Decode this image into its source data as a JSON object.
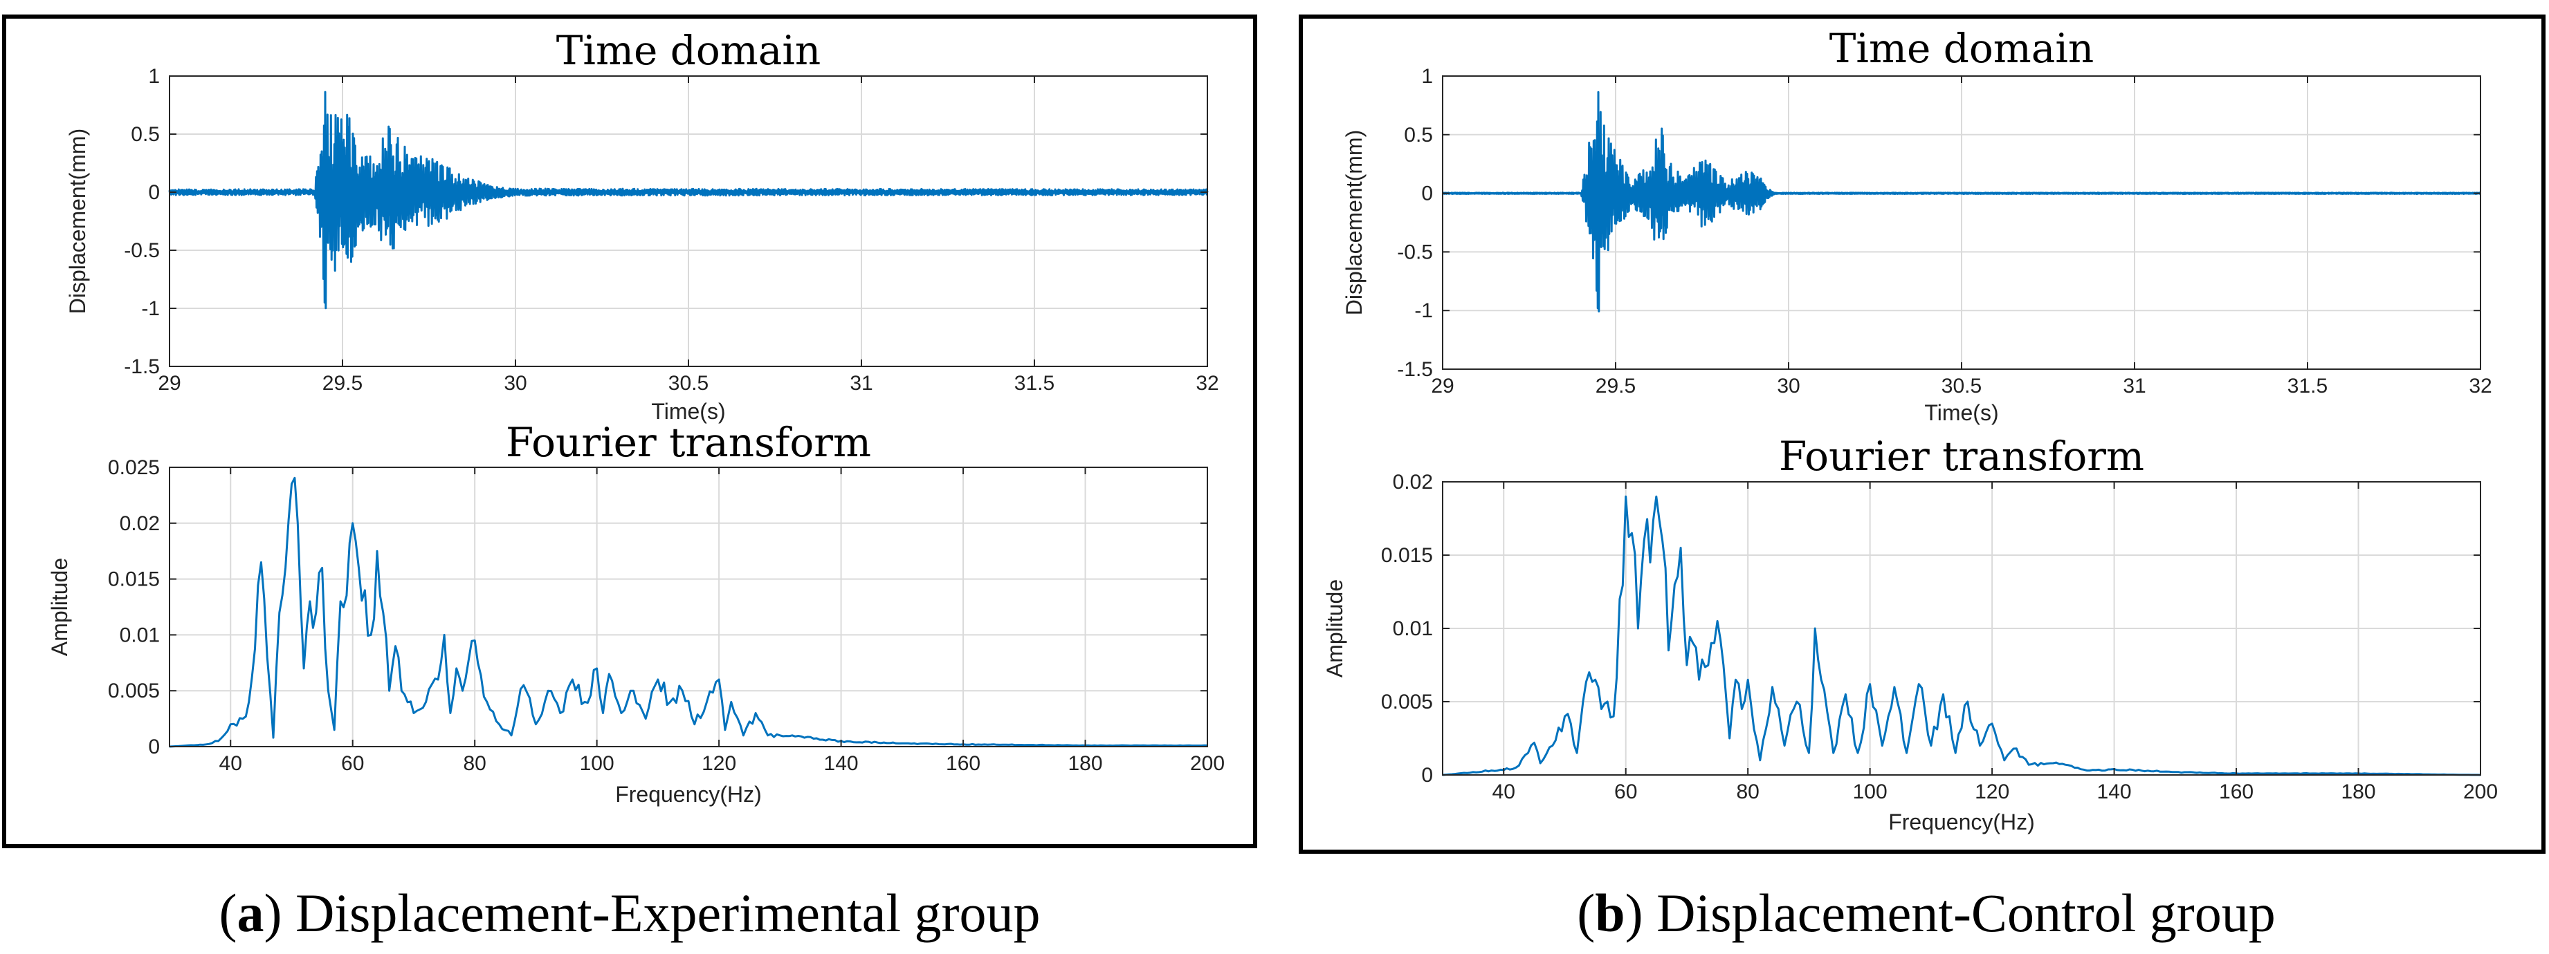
{
  "colors": {
    "line": "#0072BD",
    "grid": "#DADADA",
    "axis": "#262626",
    "frame": "#000000"
  },
  "captions": [
    {
      "paren_open": "(",
      "letter": "a",
      "paren_close": ")",
      "text": " Displacement-Experimental group"
    },
    {
      "paren_open": "(",
      "letter": "b",
      "paren_close": ")",
      "text": " Displacement-Control group"
    }
  ],
  "chart_data": [
    {
      "id": "a-time",
      "panel": "a",
      "type": "line",
      "title": "Time domain",
      "xlabel": "Time(s)",
      "ylabel": "Displacement(mm)",
      "xlim": [
        29,
        32
      ],
      "ylim": [
        -1.5,
        1
      ],
      "xticks": [
        29,
        29.5,
        30,
        30.5,
        31,
        31.5,
        32
      ],
      "xtick_labels": [
        "29",
        "29.5",
        "30",
        "30.5",
        "31",
        "31.5",
        "32"
      ],
      "yticks": [
        -1.5,
        -1,
        -0.5,
        0,
        0.5,
        1
      ],
      "ytick_labels": [
        "-1.5",
        "-1",
        "-0.5",
        "0",
        "0.5",
        "1"
      ],
      "envelope": {
        "t": [
          29,
          29.42,
          29.44,
          29.45,
          29.46,
          29.5,
          29.52,
          29.56,
          29.6,
          29.63,
          29.7,
          29.75,
          29.8,
          29.85,
          29.9,
          29.95,
          30.0,
          32
        ],
        "amp": [
          0.025,
          0.025,
          0.66,
          1.05,
          0.75,
          0.62,
          0.7,
          0.32,
          0.3,
          0.62,
          0.32,
          0.3,
          0.24,
          0.14,
          0.09,
          0.05,
          0.03,
          0.025
        ]
      }
    },
    {
      "id": "a-fft",
      "panel": "a",
      "type": "line",
      "title": "Fourier transform",
      "xlabel": "Frequency(Hz)",
      "ylabel": "Amplitude",
      "xlim": [
        30,
        200
      ],
      "ylim": [
        0,
        0.025
      ],
      "xticks": [
        40,
        60,
        80,
        100,
        120,
        140,
        160,
        180,
        200
      ],
      "xtick_labels": [
        "40",
        "60",
        "80",
        "100",
        "120",
        "140",
        "160",
        "180",
        "200"
      ],
      "yticks": [
        0,
        0.005,
        0.01,
        0.015,
        0.02,
        0.025
      ],
      "ytick_labels": [
        "0",
        "0.005",
        "0.01",
        "0.015",
        "0.02",
        "0.025"
      ],
      "x": [
        30,
        36,
        38,
        40,
        42,
        43,
        45,
        46,
        47,
        48,
        49,
        50,
        51,
        52,
        53,
        54,
        55,
        56,
        57,
        58,
        59,
        60,
        61,
        62,
        63,
        64,
        65,
        66,
        67,
        68,
        70,
        72,
        74,
        75,
        76,
        77,
        78,
        80,
        82,
        84,
        86,
        88,
        90,
        92,
        94,
        96,
        98,
        100,
        101,
        102,
        104,
        106,
        108,
        110,
        112,
        114,
        116,
        118,
        120,
        121,
        122,
        124,
        126,
        128,
        130,
        134,
        140,
        150,
        160,
        180,
        200
      ],
      "y": [
        0,
        0.0002,
        0.0005,
        0.002,
        0.0025,
        0.004,
        0.0165,
        0.008,
        0.0008,
        0.012,
        0.016,
        0.0235,
        0.02,
        0.007,
        0.013,
        0.012,
        0.016,
        0.005,
        0.0015,
        0.013,
        0.0135,
        0.02,
        0.016,
        0.014,
        0.01,
        0.0175,
        0.012,
        0.005,
        0.009,
        0.005,
        0.003,
        0.004,
        0.006,
        0.01,
        0.003,
        0.007,
        0.005,
        0.0095,
        0.004,
        0.002,
        0.001,
        0.0055,
        0.002,
        0.005,
        0.003,
        0.006,
        0.004,
        0.007,
        0.003,
        0.0065,
        0.003,
        0.005,
        0.0025,
        0.006,
        0.004,
        0.005,
        0.002,
        0.004,
        0.006,
        0.0015,
        0.004,
        0.001,
        0.003,
        0.001,
        0.001,
        0.0008,
        0.0005,
        0.0003,
        0.0002,
        0.0001,
        0.0001
      ]
    },
    {
      "id": "b-time",
      "panel": "b",
      "type": "line",
      "title": "Time domain",
      "xlabel": "Time(s)",
      "ylabel": "Displacement(mm)",
      "xlim": [
        29,
        32
      ],
      "ylim": [
        -1.5,
        1
      ],
      "xticks": [
        29,
        29.5,
        30,
        30.5,
        31,
        31.5,
        32
      ],
      "xtick_labels": [
        "29",
        "29.5",
        "30",
        "30.5",
        "31",
        "31.5",
        "32"
      ],
      "yticks": [
        -1.5,
        -1,
        -0.5,
        0,
        0.5,
        1
      ],
      "ytick_labels": [
        "-1.5",
        "-1",
        "-0.5",
        "0",
        "0.5",
        "1"
      ],
      "envelope": {
        "t": [
          29,
          29.4,
          29.42,
          29.44,
          29.45,
          29.47,
          29.5,
          29.55,
          29.6,
          29.63,
          29.65,
          29.7,
          29.75,
          29.78,
          29.82,
          29.88,
          29.92,
          29.94,
          29.96,
          32
        ],
        "amp": [
          0.005,
          0.005,
          0.35,
          0.85,
          1.05,
          0.55,
          0.35,
          0.12,
          0.25,
          0.65,
          0.3,
          0.12,
          0.3,
          0.25,
          0.1,
          0.2,
          0.15,
          0.05,
          0.005,
          0.005
        ]
      }
    },
    {
      "id": "b-fft",
      "panel": "b",
      "type": "line",
      "title": "Fourier transform",
      "xlabel": "Frequency(Hz)",
      "ylabel": "Amplitude",
      "xlim": [
        30,
        200
      ],
      "ylim": [
        0,
        0.02
      ],
      "xticks": [
        40,
        60,
        80,
        100,
        120,
        140,
        160,
        180,
        200
      ],
      "xtick_labels": [
        "40",
        "60",
        "80",
        "100",
        "120",
        "140",
        "160",
        "180",
        "200"
      ],
      "yticks": [
        0,
        0.005,
        0.01,
        0.015,
        0.02
      ],
      "ytick_labels": [
        "0",
        "0.005",
        "0.01",
        "0.015",
        "0.02"
      ],
      "x": [
        30,
        38,
        42,
        44,
        45,
        46,
        48,
        50,
        51,
        52,
        53,
        54,
        55,
        56,
        57,
        58,
        59,
        60,
        61,
        62,
        63,
        64,
        65,
        66,
        67,
        68,
        69,
        70,
        71,
        72,
        74,
        75,
        76,
        77,
        78,
        79,
        80,
        82,
        84,
        86,
        88,
        90,
        91,
        92,
        94,
        96,
        98,
        100,
        102,
        104,
        106,
        108,
        110,
        112,
        114,
        116,
        118,
        120,
        122,
        124,
        126,
        130,
        136,
        140,
        150,
        160,
        180,
        200
      ],
      "y": [
        0,
        0.0003,
        0.0005,
        0.0015,
        0.0022,
        0.0008,
        0.002,
        0.004,
        0.0035,
        0.0015,
        0.005,
        0.007,
        0.0065,
        0.0045,
        0.005,
        0.004,
        0.012,
        0.019,
        0.0165,
        0.01,
        0.016,
        0.0145,
        0.019,
        0.016,
        0.0085,
        0.013,
        0.0155,
        0.0075,
        0.009,
        0.0065,
        0.009,
        0.0105,
        0.0075,
        0.0025,
        0.0065,
        0.0045,
        0.0065,
        0.001,
        0.006,
        0.002,
        0.005,
        0.0015,
        0.01,
        0.0065,
        0.0015,
        0.0055,
        0.0015,
        0.0062,
        0.002,
        0.006,
        0.0015,
        0.0062,
        0.002,
        0.0055,
        0.0015,
        0.005,
        0.002,
        0.0035,
        0.001,
        0.0018,
        0.0007,
        0.0008,
        0.0003,
        0.0004,
        0.0002,
        0.0001,
        0.0001,
        0
      ]
    }
  ]
}
